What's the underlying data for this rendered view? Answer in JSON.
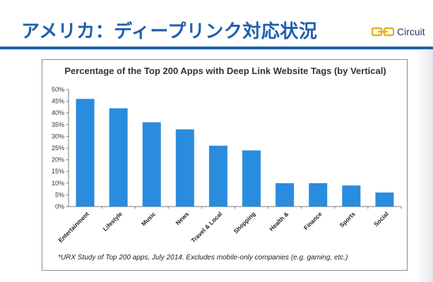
{
  "slide": {
    "title": "アメリカ：ディープリンク対応状況",
    "brand_name": "Circuit",
    "brand_icon": "chain-link-icon",
    "accent_color": "#1f5fae"
  },
  "chart_data": {
    "type": "bar",
    "title": "Percentage of the Top 200 Apps with Deep Link Website Tags (by Vertical)",
    "xlabel": "",
    "ylabel": "",
    "categories": [
      "Entertainment",
      "Lifestyle",
      "Music",
      "News",
      "Travel & Local",
      "Shopping",
      "Health &",
      "Finance",
      "Sports",
      "Social"
    ],
    "values": [
      46,
      42,
      36,
      33,
      26,
      24,
      10,
      10,
      9,
      6
    ],
    "ylim": [
      0,
      50
    ],
    "yticks": [
      "0%",
      "5%",
      "10%",
      "15%",
      "20%",
      "25%",
      "30%",
      "35%",
      "40%",
      "45%",
      "50%"
    ],
    "grid": false,
    "legend": "none",
    "bar_color": "#2a8cde",
    "footnote": "*URX Study of Top 200 apps, July 2014. Excludes mobile-only companies (e.g. gaming, etc.)"
  }
}
